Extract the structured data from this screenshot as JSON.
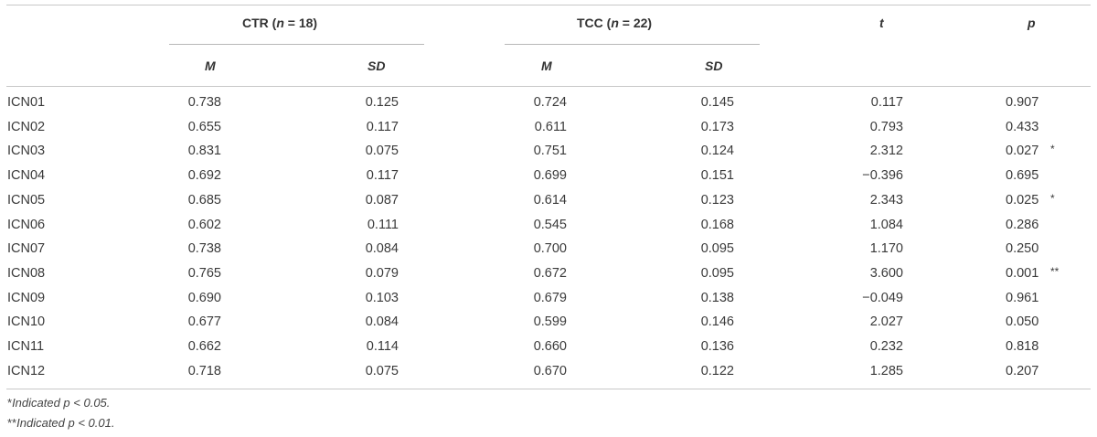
{
  "table": {
    "groups": [
      {
        "label": "CTR (",
        "n_var": "n",
        "n_rest": " = 18)"
      },
      {
        "label": "TCC (",
        "n_var": "n",
        "n_rest": " = 22)"
      }
    ],
    "headers": {
      "t": "t",
      "p": "p",
      "m": "M",
      "sd": "SD"
    },
    "rows": [
      {
        "label": "ICN01",
        "ctr_m": "0.738",
        "ctr_sd": "0.125",
        "tcc_m": "0.724",
        "tcc_sd": "0.145",
        "t": "0.117",
        "p": "0.907",
        "sig": ""
      },
      {
        "label": "ICN02",
        "ctr_m": "0.655",
        "ctr_sd": "0.117",
        "tcc_m": "0.611",
        "tcc_sd": "0.173",
        "t": "0.793",
        "p": "0.433",
        "sig": ""
      },
      {
        "label": "ICN03",
        "ctr_m": "0.831",
        "ctr_sd": "0.075",
        "tcc_m": "0.751",
        "tcc_sd": "0.124",
        "t": "2.312",
        "p": "0.027",
        "sig": "*"
      },
      {
        "label": "ICN04",
        "ctr_m": "0.692",
        "ctr_sd": "0.117",
        "tcc_m": "0.699",
        "tcc_sd": "0.151",
        "t": "−0.396",
        "p": "0.695",
        "sig": ""
      },
      {
        "label": "ICN05",
        "ctr_m": "0.685",
        "ctr_sd": "0.087",
        "tcc_m": "0.614",
        "tcc_sd": "0.123",
        "t": "2.343",
        "p": "0.025",
        "sig": "*"
      },
      {
        "label": "ICN06",
        "ctr_m": "0.602",
        "ctr_sd": "0.111",
        "tcc_m": "0.545",
        "tcc_sd": "0.168",
        "t": "1.084",
        "p": "0.286",
        "sig": ""
      },
      {
        "label": "ICN07",
        "ctr_m": "0.738",
        "ctr_sd": "0.084",
        "tcc_m": "0.700",
        "tcc_sd": "0.095",
        "t": "1.170",
        "p": "0.250",
        "sig": ""
      },
      {
        "label": "ICN08",
        "ctr_m": "0.765",
        "ctr_sd": "0.079",
        "tcc_m": "0.672",
        "tcc_sd": "0.095",
        "t": "3.600",
        "p": "0.001",
        "sig": "**"
      },
      {
        "label": "ICN09",
        "ctr_m": "0.690",
        "ctr_sd": "0.103",
        "tcc_m": "0.679",
        "tcc_sd": "0.138",
        "t": "−0.049",
        "p": "0.961",
        "sig": ""
      },
      {
        "label": "ICN10",
        "ctr_m": "0.677",
        "ctr_sd": "0.084",
        "tcc_m": "0.599",
        "tcc_sd": "0.146",
        "t": "2.027",
        "p": "0.050",
        "sig": ""
      },
      {
        "label": "ICN11",
        "ctr_m": "0.662",
        "ctr_sd": "0.114",
        "tcc_m": "0.660",
        "tcc_sd": "0.136",
        "t": "0.232",
        "p": "0.818",
        "sig": ""
      },
      {
        "label": "ICN12",
        "ctr_m": "0.718",
        "ctr_sd": "0.075",
        "tcc_m": "0.670",
        "tcc_sd": "0.122",
        "t": "1.285",
        "p": "0.207",
        "sig": ""
      }
    ],
    "footnotes": [
      {
        "mark": "*",
        "text": "Indicated p < 0.05."
      },
      {
        "mark": "**",
        "text": "Indicated p < 0.01."
      }
    ]
  }
}
